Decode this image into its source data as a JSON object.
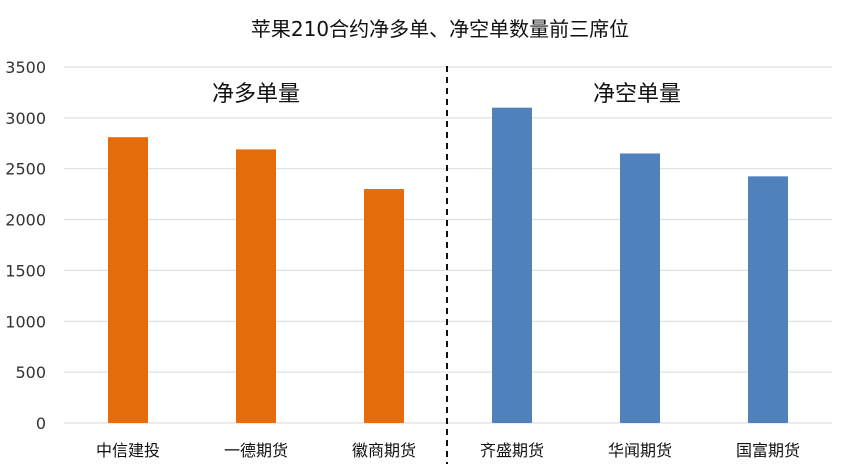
{
  "chart_data": {
    "type": "bar",
    "title": "苹果210合约净多单、净空单数量前三席位",
    "categories": [
      "中信建投",
      "一德期货",
      "徽商期货",
      "齐盛期货",
      "华闻期货",
      "国富期货"
    ],
    "values": [
      2810,
      2690,
      2300,
      3100,
      2650,
      2425
    ],
    "groups": [
      {
        "label": "净多单量",
        "categories": [
          "中信建投",
          "一德期货",
          "徽商期货"
        ],
        "color": "#E46C0A"
      },
      {
        "label": "净空单量",
        "categories": [
          "齐盛期货",
          "华闻期货",
          "国富期货"
        ],
        "color": "#4F81BD"
      }
    ],
    "ylim": [
      0,
      3500
    ],
    "yticks": [
      0,
      500,
      1000,
      1500,
      2000,
      2500,
      3000,
      3500
    ],
    "grid": true,
    "xlabel": "",
    "ylabel": ""
  }
}
